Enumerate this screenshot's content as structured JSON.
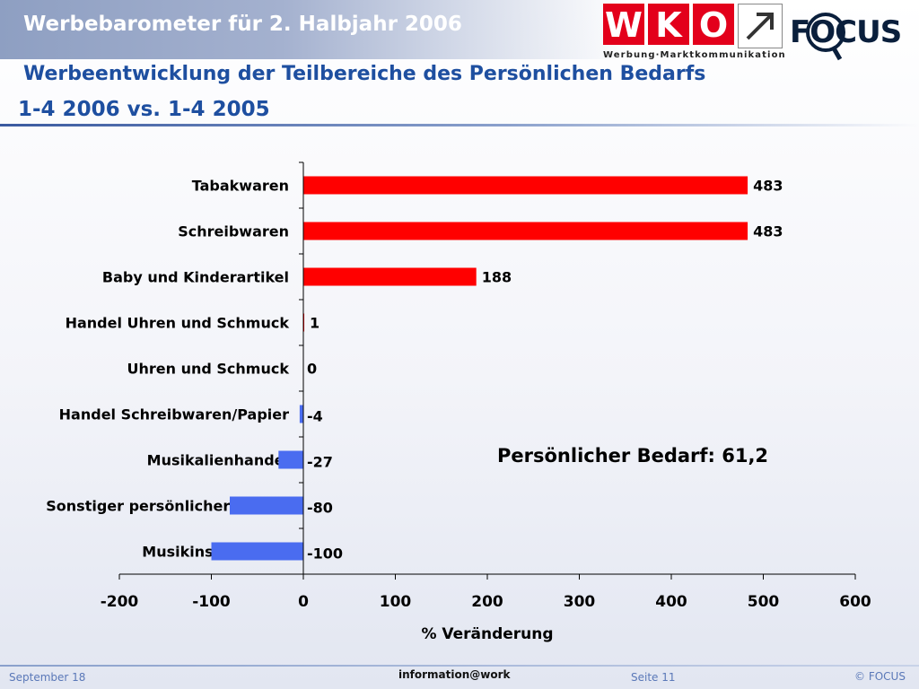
{
  "header": {
    "title": "Werbebarometer für 2. Halbjahr 2006",
    "subtitle": "Werbeentwicklung der Teilbereiche des Persönlichen Bedarfs",
    "period": "1-4 2006 vs. 1-4 2005"
  },
  "logos": {
    "wko_letters": [
      "W",
      "K",
      "O"
    ],
    "wko_caption": "Werbung·Marktkommunikation",
    "focus_text": "FOCUS",
    "wko_color": "#e3001b"
  },
  "annotation": "Persönlicher Bedarf: 61,2",
  "footer": {
    "date": "September 18",
    "center": "information@work",
    "page": "Seite 11",
    "copyright": "© FOCUS"
  },
  "chart_data": {
    "type": "bar",
    "orientation": "horizontal",
    "categories": [
      "Tabakwaren",
      "Schreibwaren",
      "Baby und Kinderartikel",
      "Handel Uhren und Schmuck",
      "Uhren und Schmuck",
      "Handel Schreibwaren/Papier",
      "Musikalienhandel",
      "Sonstiger persönlicher Bedarf",
      "Musikinstrumente"
    ],
    "values": [
      483,
      483,
      188,
      1,
      0,
      -4,
      -27,
      -80,
      -100
    ],
    "xlabel": "% Veränderung",
    "xlim": [
      -200,
      600
    ],
    "xticks": [
      -200,
      -100,
      0,
      100,
      200,
      300,
      400,
      500,
      600
    ],
    "grid": false,
    "legend": "none",
    "colors": {
      "positive": "#ff0000",
      "negative": "#4a6cf0"
    }
  }
}
